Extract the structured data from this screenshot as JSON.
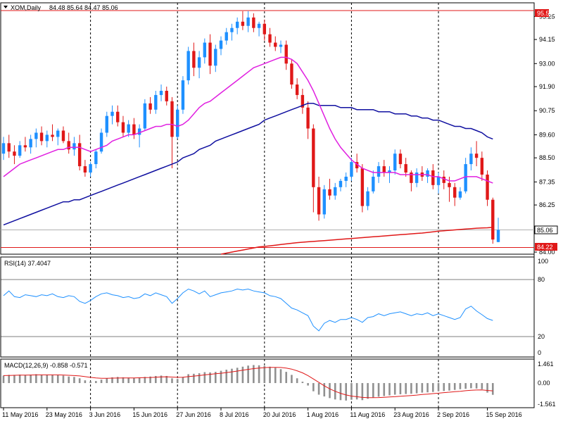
{
  "header": {
    "symbol_label": "XOM,Daily",
    "ohlc_label": "84.48 85.64 84.47 85.06"
  },
  "colors": {
    "bull": "#1e90ff",
    "bear": "#e01818",
    "ma_fast": "#e020e0",
    "ma_mid": "#1010a0",
    "ma_slow": "#e01818",
    "rsi": "#1e90ff",
    "macd_hist": "#909090",
    "macd_signal": "#e01818",
    "resistance": "#e01818"
  },
  "price_axis": {
    "ticks": [
      "95.25",
      "94.15",
      "93.00",
      "91.90",
      "90.75",
      "89.60",
      "88.50",
      "87.35",
      "86.25",
      "84.00"
    ],
    "current_label": "85.06",
    "resistance_label": "95.53",
    "support_label": "84.22"
  },
  "rsi": {
    "title": "RSI(14) 37.4047",
    "ticks": [
      "100",
      "80",
      "20",
      "0"
    ]
  },
  "macd": {
    "title": "MACD(12,26,9) -0.858 -0.571",
    "ticks": [
      "1.461",
      "0.00",
      "-1.561"
    ]
  },
  "x_axis": {
    "labels": [
      "11 May 2016",
      "23 May 2016",
      "3 Jun 2016",
      "15 Jun 2016",
      "27 Jun 2016",
      "8 Jul 2016",
      "20 Jul 2016",
      "1 Aug 2016",
      "11 Aug 2016",
      "23 Aug 2016",
      "2 Sep 2016",
      "15 Sep 2016"
    ]
  },
  "chart_data": {
    "type": "candlestick",
    "ylim": [
      83.9,
      95.8
    ],
    "resistance": 95.53,
    "support": 84.22,
    "current": 85.06,
    "candles": [
      [
        88.7,
        89.5,
        88.4,
        89.2
      ],
      [
        89.2,
        89.6,
        88.5,
        88.8
      ],
      [
        88.8,
        89.1,
        88.2,
        88.6
      ],
      [
        88.6,
        89.3,
        88.5,
        89.1
      ],
      [
        89.1,
        89.5,
        88.8,
        89.0
      ],
      [
        89.0,
        89.6,
        88.7,
        89.4
      ],
      [
        89.4,
        89.9,
        89.0,
        89.7
      ],
      [
        89.7,
        90.0,
        89.1,
        89.3
      ],
      [
        89.3,
        89.8,
        89.0,
        89.6
      ],
      [
        89.6,
        90.1,
        89.3,
        89.5
      ],
      [
        89.5,
        89.9,
        89.1,
        89.8
      ],
      [
        89.8,
        90.0,
        89.2,
        89.3
      ],
      [
        89.3,
        89.7,
        88.7,
        88.9
      ],
      [
        88.9,
        89.5,
        88.6,
        89.2
      ],
      [
        89.2,
        89.6,
        87.9,
        88.1
      ],
      [
        88.1,
        88.4,
        87.6,
        87.8
      ],
      [
        87.8,
        88.3,
        87.6,
        88.2
      ],
      [
        88.2,
        88.9,
        88.0,
        88.8
      ],
      [
        88.8,
        89.9,
        88.7,
        89.7
      ],
      [
        89.7,
        90.7,
        89.5,
        90.5
      ],
      [
        90.5,
        91.0,
        90.1,
        90.7
      ],
      [
        90.7,
        91.0,
        90.0,
        90.2
      ],
      [
        90.2,
        90.5,
        89.5,
        89.7
      ],
      [
        89.7,
        90.3,
        89.5,
        90.1
      ],
      [
        90.1,
        90.4,
        89.4,
        89.6
      ],
      [
        89.6,
        90.1,
        89.0,
        89.9
      ],
      [
        89.9,
        91.3,
        89.8,
        91.1
      ],
      [
        91.1,
        91.4,
        90.6,
        90.8
      ],
      [
        90.8,
        91.7,
        90.6,
        91.5
      ],
      [
        91.5,
        92.0,
        91.2,
        91.7
      ],
      [
        91.7,
        91.9,
        91.0,
        91.2
      ],
      [
        91.2,
        91.4,
        88.0,
        89.5
      ],
      [
        89.5,
        91.0,
        89.4,
        90.8
      ],
      [
        90.8,
        92.4,
        90.6,
        92.2
      ],
      [
        92.2,
        93.8,
        92.0,
        93.6
      ],
      [
        93.6,
        94.0,
        92.4,
        92.8
      ],
      [
        92.8,
        93.6,
        92.3,
        93.3
      ],
      [
        93.3,
        94.2,
        93.0,
        94.0
      ],
      [
        94.0,
        94.4,
        92.5,
        92.9
      ],
      [
        92.9,
        93.9,
        92.6,
        93.7
      ],
      [
        93.7,
        94.3,
        93.4,
        94.1
      ],
      [
        94.1,
        94.7,
        93.9,
        94.5
      ],
      [
        94.5,
        94.9,
        94.1,
        94.7
      ],
      [
        94.7,
        95.2,
        94.4,
        95.0
      ],
      [
        95.0,
        95.5,
        94.6,
        94.8
      ],
      [
        94.8,
        95.5,
        94.5,
        95.2
      ],
      [
        95.2,
        95.4,
        94.5,
        94.7
      ],
      [
        94.7,
        95.0,
        94.3,
        94.9
      ],
      [
        94.9,
        95.1,
        94.1,
        94.4
      ],
      [
        94.4,
        94.7,
        93.8,
        94.0
      ],
      [
        94.0,
        94.3,
        93.6,
        93.8
      ],
      [
        93.8,
        94.1,
        93.5,
        93.9
      ],
      [
        93.9,
        94.1,
        92.7,
        93.0
      ],
      [
        93.0,
        93.2,
        91.8,
        92.0
      ],
      [
        92.0,
        92.3,
        91.3,
        91.5
      ],
      [
        91.5,
        91.8,
        90.6,
        90.9
      ],
      [
        90.9,
        91.2,
        89.4,
        89.9
      ],
      [
        89.9,
        90.1,
        85.9,
        87.1
      ],
      [
        87.1,
        87.6,
        85.5,
        85.8
      ],
      [
        85.8,
        87.2,
        85.6,
        87.0
      ],
      [
        87.0,
        87.5,
        86.5,
        86.7
      ],
      [
        86.7,
        87.3,
        86.5,
        87.1
      ],
      [
        87.1,
        87.5,
        86.9,
        87.4
      ],
      [
        87.4,
        87.8,
        87.1,
        87.6
      ],
      [
        87.6,
        88.5,
        87.4,
        88.3
      ],
      [
        88.3,
        88.7,
        87.8,
        88.0
      ],
      [
        88.0,
        88.2,
        85.9,
        86.2
      ],
      [
        86.2,
        87.1,
        86.0,
        86.9
      ],
      [
        86.9,
        87.9,
        86.8,
        87.6
      ],
      [
        87.6,
        88.3,
        87.3,
        88.1
      ],
      [
        88.1,
        88.4,
        87.6,
        87.8
      ],
      [
        87.8,
        88.1,
        87.3,
        87.9
      ],
      [
        87.9,
        88.9,
        87.7,
        88.7
      ],
      [
        88.7,
        88.9,
        88.0,
        88.2
      ],
      [
        88.2,
        88.5,
        87.6,
        87.8
      ],
      [
        87.8,
        87.9,
        86.9,
        87.3
      ],
      [
        87.3,
        88.0,
        87.1,
        87.8
      ],
      [
        87.8,
        88.1,
        87.4,
        87.6
      ],
      [
        87.6,
        88.0,
        87.3,
        87.9
      ],
      [
        87.9,
        88.2,
        87.0,
        87.2
      ],
      [
        87.2,
        87.8,
        86.8,
        87.6
      ],
      [
        87.6,
        87.9,
        87.0,
        87.3
      ],
      [
        87.3,
        87.6,
        86.4,
        87.1
      ],
      [
        87.1,
        87.3,
        86.2,
        86.6
      ],
      [
        86.6,
        87.1,
        86.5,
        86.9
      ],
      [
        86.9,
        88.5,
        86.8,
        88.2
      ],
      [
        88.2,
        89.0,
        87.9,
        88.7
      ],
      [
        88.7,
        89.3,
        88.1,
        88.5
      ],
      [
        88.5,
        88.8,
        87.4,
        87.7
      ],
      [
        87.7,
        87.9,
        86.2,
        86.5
      ],
      [
        86.5,
        86.6,
        84.4,
        84.6
      ],
      [
        84.48,
        85.64,
        84.47,
        85.06
      ]
    ],
    "ma_fast": [
      87.6,
      87.8,
      88.0,
      88.2,
      88.3,
      88.4,
      88.5,
      88.6,
      88.7,
      88.8,
      88.9,
      88.9,
      89.0,
      89.0,
      89.0,
      88.9,
      88.8,
      88.9,
      89.0,
      89.1,
      89.3,
      89.4,
      89.5,
      89.6,
      89.6,
      89.7,
      89.8,
      89.9,
      90.0,
      90.0,
      90.1,
      90.1,
      90.0,
      90.1,
      90.3,
      90.6,
      90.9,
      91.1,
      91.2,
      91.4,
      91.6,
      91.8,
      92.0,
      92.2,
      92.4,
      92.6,
      92.8,
      92.9,
      93.0,
      93.1,
      93.2,
      93.3,
      93.3,
      93.2,
      93.0,
      92.6,
      92.2,
      91.7,
      91.1,
      90.5,
      89.9,
      89.4,
      89.0,
      88.7,
      88.4,
      88.2,
      88.0,
      87.9,
      87.8,
      87.8,
      87.8,
      87.8,
      87.8,
      87.7,
      87.7,
      87.7,
      87.7,
      87.7,
      87.7,
      87.6,
      87.6,
      87.5,
      87.4,
      87.4,
      87.5,
      87.6,
      87.6,
      87.6,
      87.5,
      87.4,
      87.3
    ],
    "ma_mid": [
      85.3,
      85.4,
      85.5,
      85.6,
      85.7,
      85.8,
      85.9,
      86.0,
      86.1,
      86.2,
      86.3,
      86.4,
      86.4,
      86.5,
      86.5,
      86.6,
      86.7,
      86.8,
      86.9,
      87.0,
      87.1,
      87.2,
      87.3,
      87.4,
      87.5,
      87.6,
      87.7,
      87.8,
      87.9,
      88.0,
      88.1,
      88.2,
      88.3,
      88.5,
      88.6,
      88.7,
      88.9,
      89.0,
      89.1,
      89.3,
      89.4,
      89.5,
      89.6,
      89.7,
      89.8,
      89.9,
      90.0,
      90.1,
      90.3,
      90.4,
      90.5,
      90.6,
      90.7,
      90.8,
      90.9,
      91.0,
      91.1,
      91.1,
      91.0,
      91.0,
      91.0,
      91.0,
      90.9,
      90.9,
      90.9,
      90.8,
      90.8,
      90.8,
      90.8,
      90.7,
      90.7,
      90.7,
      90.6,
      90.6,
      90.6,
      90.5,
      90.5,
      90.4,
      90.4,
      90.3,
      90.3,
      90.2,
      90.1,
      90.0,
      90.0,
      89.9,
      89.9,
      89.8,
      89.7,
      89.5,
      89.4
    ],
    "ma_slow_start_index": 40,
    "ma_slow": [
      83.9,
      83.95,
      84.0,
      84.05,
      84.1,
      84.15,
      84.2,
      84.25,
      84.27,
      84.3,
      84.33,
      84.36,
      84.39,
      84.42,
      84.45,
      84.47,
      84.49,
      84.51,
      84.53,
      84.55,
      84.57,
      84.59,
      84.61,
      84.63,
      84.65,
      84.67,
      84.69,
      84.71,
      84.73,
      84.75,
      84.77,
      84.79,
      84.81,
      84.83,
      84.85,
      84.87,
      84.89,
      84.91,
      84.94,
      84.97,
      85.0,
      85.02,
      85.04,
      85.06,
      85.08,
      85.1,
      85.12,
      85.14,
      85.15,
      85.16,
      85.18
    ],
    "rsi_ylim": [
      0,
      100
    ],
    "rsi_levels": [
      80,
      20
    ],
    "rsi_values": [
      63,
      68,
      62,
      61,
      64,
      63,
      62,
      64,
      63,
      65,
      62,
      61,
      63,
      62,
      57,
      55,
      58,
      62,
      65,
      66,
      64,
      63,
      61,
      62,
      60,
      61,
      65,
      63,
      66,
      64,
      62,
      55,
      60,
      66,
      70,
      68,
      65,
      68,
      62,
      64,
      66,
      67,
      68,
      70,
      69,
      70,
      68,
      67,
      66,
      63,
      62,
      60,
      55,
      50,
      48,
      45,
      42,
      31,
      26,
      34,
      37,
      35,
      38,
      38,
      40,
      38,
      35,
      40,
      41,
      44,
      42,
      44,
      45,
      46,
      44,
      42,
      44,
      43,
      45,
      42,
      44,
      42,
      40,
      38,
      40,
      49,
      52,
      47,
      43,
      39,
      37
    ],
    "macd_ylim": [
      -1.7,
      1.6
    ],
    "macd_hist": [
      0.55,
      0.6,
      0.6,
      0.62,
      0.6,
      0.62,
      0.65,
      0.62,
      0.6,
      0.62,
      0.58,
      0.55,
      0.48,
      0.45,
      0.35,
      0.2,
      0.12,
      0.15,
      0.25,
      0.35,
      0.42,
      0.45,
      0.42,
      0.4,
      0.38,
      0.4,
      0.45,
      0.48,
      0.52,
      0.55,
      0.52,
      0.35,
      0.3,
      0.45,
      0.65,
      0.68,
      0.72,
      0.8,
      0.78,
      0.82,
      0.9,
      0.98,
      1.05,
      1.12,
      1.2,
      1.28,
      1.32,
      1.3,
      1.25,
      1.2,
      1.12,
      1.02,
      0.82,
      0.6,
      0.35,
      0.1,
      -0.18,
      -0.6,
      -0.85,
      -0.98,
      -1.1,
      -1.2,
      -1.25,
      -1.28,
      -1.22,
      -1.2,
      -1.25,
      -1.15,
      -1.05,
      -1.0,
      -0.95,
      -0.9,
      -0.85,
      -0.82,
      -0.8,
      -0.78,
      -0.75,
      -0.7,
      -0.68,
      -0.65,
      -0.6,
      -0.58,
      -0.55,
      -0.5,
      -0.45,
      -0.42,
      -0.38,
      -0.4,
      -0.45,
      -0.7,
      -0.86
    ],
    "macd_signal": [
      0.55,
      0.56,
      0.57,
      0.58,
      0.58,
      0.59,
      0.6,
      0.6,
      0.6,
      0.6,
      0.6,
      0.59,
      0.57,
      0.55,
      0.52,
      0.47,
      0.42,
      0.38,
      0.35,
      0.35,
      0.36,
      0.37,
      0.38,
      0.38,
      0.38,
      0.39,
      0.4,
      0.41,
      0.43,
      0.45,
      0.46,
      0.44,
      0.42,
      0.43,
      0.47,
      0.51,
      0.55,
      0.6,
      0.64,
      0.68,
      0.72,
      0.77,
      0.82,
      0.88,
      0.94,
      1.0,
      1.06,
      1.1,
      1.13,
      1.15,
      1.15,
      1.14,
      1.1,
      1.02,
      0.9,
      0.75,
      0.55,
      0.3,
      0.05,
      -0.2,
      -0.42,
      -0.6,
      -0.75,
      -0.87,
      -0.95,
      -1.0,
      -1.05,
      -1.07,
      -1.07,
      -1.06,
      -1.04,
      -1.02,
      -1.0,
      -0.97,
      -0.94,
      -0.91,
      -0.88,
      -0.84,
      -0.81,
      -0.77,
      -0.74,
      -0.7,
      -0.67,
      -0.63,
      -0.6,
      -0.56,
      -0.53,
      -0.51,
      -0.5,
      -0.54,
      -0.57
    ],
    "x_tick_indices": [
      0,
      8,
      16,
      24,
      32,
      40,
      48,
      56,
      64,
      72,
      80,
      89
    ]
  }
}
